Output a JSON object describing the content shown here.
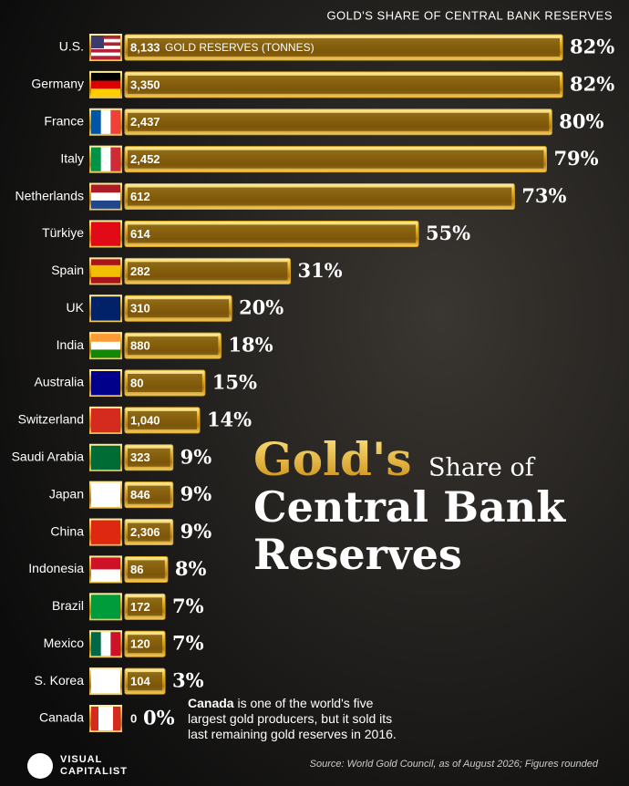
{
  "chart_data": {
    "type": "bar",
    "orientation": "horizontal",
    "subtitle": "GOLD'S SHARE OF CENTRAL BANK RESERVES",
    "title_parts": [
      "Gold's",
      "Share of",
      "Central Bank",
      "Reserves"
    ],
    "categories": [
      "U.S.",
      "Germany",
      "France",
      "Italy",
      "Netherlands",
      "Türkiye",
      "Spain",
      "UK",
      "India",
      "Australia",
      "Switzerland",
      "Saudi Arabia",
      "Japan",
      "China",
      "Indonesia",
      "Brazil",
      "Mexico",
      "S. Korea",
      "Canada"
    ],
    "color": "#d9a520",
    "series": [
      {
        "name": "GOLD'S SHARE OF CENTRAL BANK RESERVES",
        "values": [
          82,
          82,
          80,
          79,
          73,
          55,
          31,
          20,
          18,
          15,
          14,
          9,
          9,
          9,
          8,
          7,
          7,
          3,
          0
        ],
        "value_labels": [
          "82%",
          "82%",
          "80%",
          "79%",
          "73%",
          "55%",
          "31%",
          "20%",
          "18%",
          "15%",
          "14%",
          "9%",
          "9%",
          "9%",
          "8%",
          "7%",
          "7%",
          "3%",
          "0%"
        ]
      },
      {
        "name": "GOLD RESERVES (TONNES)",
        "values": [
          8133,
          3350,
          2437,
          2452,
          612,
          614,
          282,
          310,
          880,
          80,
          1040,
          323,
          846,
          2306,
          86,
          172,
          120,
          104,
          0
        ],
        "value_labels": [
          "8,133",
          "3,350",
          "2,437",
          "2,452",
          "612",
          "614",
          "282",
          "310",
          "880",
          "80",
          "1,040",
          "323",
          "846",
          "2,306",
          "86",
          "172",
          "120",
          "104",
          "0"
        ]
      }
    ],
    "annotation": {
      "bold": "Canada",
      "lines": [
        " is one of the world's five",
        "largest gold producers, but it sold its",
        "last remaining gold reserves in 2016."
      ]
    },
    "source": "Source: World Gold Council, as of August 2026; Figures rounded",
    "brand": [
      "VISUAL",
      "CAPITALIST"
    ]
  }
}
